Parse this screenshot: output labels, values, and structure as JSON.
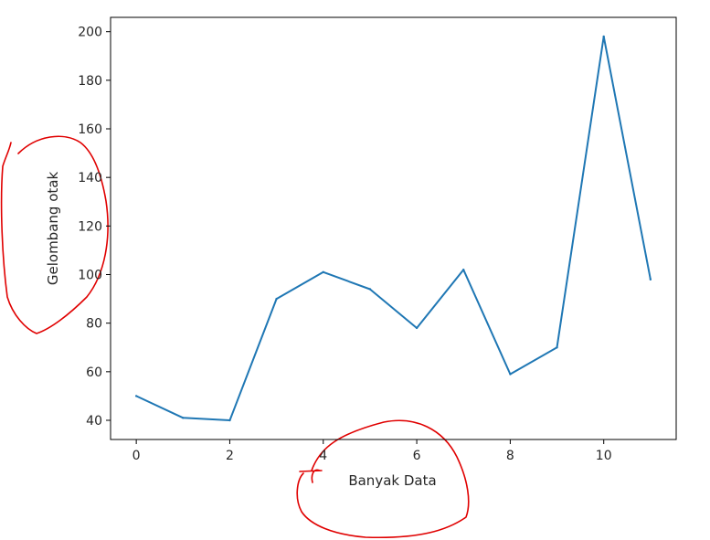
{
  "chart_data": {
    "type": "line",
    "title": "",
    "xlabel": "Banyak Data",
    "ylabel": "Gelombang otak",
    "x": [
      0,
      1,
      2,
      3,
      4,
      5,
      6,
      7,
      8,
      9,
      10,
      11
    ],
    "series": [
      {
        "values": [
          50,
          41,
          40,
          90,
          101,
          94,
          78,
          102,
          59,
          70,
          198,
          98
        ],
        "color": "#1f77b4"
      }
    ],
    "xlim": [
      -0.55,
      11.55
    ],
    "ylim": [
      32.1,
      205.9
    ],
    "xticks": [
      0,
      2,
      4,
      6,
      8,
      10
    ],
    "xtick_labels": [
      "0",
      "2",
      "4",
      "6",
      "8",
      "10"
    ],
    "yticks": [
      40,
      60,
      80,
      100,
      120,
      140,
      160,
      180,
      200
    ],
    "ytick_labels": [
      "40",
      "60",
      "80",
      "100",
      "120",
      "140",
      "160",
      "180",
      "200"
    ],
    "grid": false,
    "legend": "none",
    "annotations": [
      {
        "type": "hand-drawn-circle",
        "target": "ylabel",
        "color": "#e00000"
      },
      {
        "type": "hand-drawn-circle",
        "target": "xlabel",
        "color": "#e00000"
      }
    ]
  }
}
